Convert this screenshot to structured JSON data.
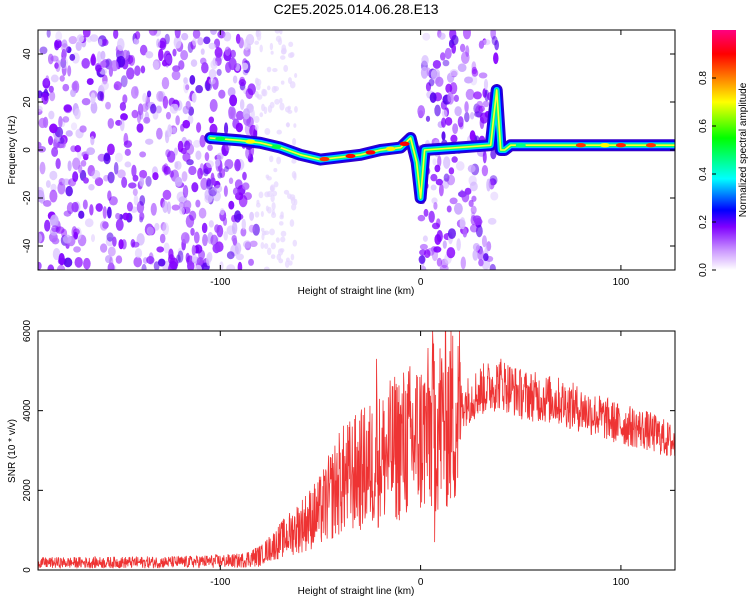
{
  "figure": {
    "title": "C2E5.2025.014.06.28.E13"
  },
  "chart_data": [
    {
      "type": "heatmap",
      "xlabel": "Height of straight line (km)",
      "ylabel": "Frequency (Hz)",
      "xlim": [
        -191,
        127
      ],
      "ylim": [
        -50,
        50
      ],
      "xticks": [
        -100,
        0,
        100
      ],
      "yticks": [
        -40,
        -20,
        0,
        20,
        40
      ],
      "grid": false,
      "colorbar": {
        "label": "Normalized spectral amplitude",
        "range": [
          0,
          1
        ],
        "ticks": [
          0,
          0.2,
          0.4,
          0.6,
          0.8
        ],
        "colormap": [
          "#ffffff",
          "#cc99ff",
          "#7f00ff",
          "#0000ff",
          "#00ffff",
          "#00ff00",
          "#ffff00",
          "#ff8000",
          "#ff0000",
          "#ff0080"
        ]
      },
      "regions": [
        {
          "name": "noise",
          "x": [
            -191,
            -82
          ],
          "density": "high"
        },
        {
          "name": "noise",
          "x": [
            0,
            38
          ],
          "density": "high"
        }
      ],
      "signal_track": {
        "x": [
          -105,
          -90,
          -80,
          -70,
          -60,
          -50,
          -40,
          -30,
          -20,
          -10,
          -5,
          -2,
          0,
          2,
          35,
          38,
          40,
          42,
          45,
          60,
          80,
          100,
          127
        ],
        "y": [
          5,
          4,
          3,
          1,
          -2,
          -4,
          -3,
          -2,
          0,
          1,
          5,
          -5,
          -20,
          0,
          2,
          25,
          0,
          0,
          2,
          2,
          2,
          2,
          2
        ]
      }
    },
    {
      "type": "line",
      "xlabel": "Height of straight line (km)",
      "ylabel": "SNR (10 * v/v)",
      "xlim": [
        -191,
        127
      ],
      "ylim": [
        0,
        6000
      ],
      "xticks": [
        -100,
        0,
        100
      ],
      "yticks": [
        0,
        2000,
        4000,
        6000
      ],
      "grid": false,
      "series": [
        {
          "color": "#ee3333",
          "envelope_x": [
            -191,
            -120,
            -90,
            -80,
            -70,
            -60,
            -50,
            -40,
            -30,
            -20,
            -10,
            0,
            10,
            20,
            30,
            40,
            50,
            60,
            70,
            80,
            90,
            100,
            110,
            120,
            127
          ],
          "envelope_y": [
            200,
            220,
            260,
            400,
            800,
            1200,
            1600,
            2400,
            2700,
            3000,
            3400,
            3600,
            4000,
            4300,
            4700,
            4900,
            4600,
            4500,
            4400,
            4200,
            4000,
            3800,
            3700,
            3500,
            3300
          ],
          "spikes": [
            {
              "x": -22,
              "y": 5300
            },
            {
              "x": -15,
              "y": 4000
            },
            {
              "x": 6,
              "y": 6000
            },
            {
              "x": 7,
              "y": 700
            }
          ]
        }
      ]
    }
  ]
}
